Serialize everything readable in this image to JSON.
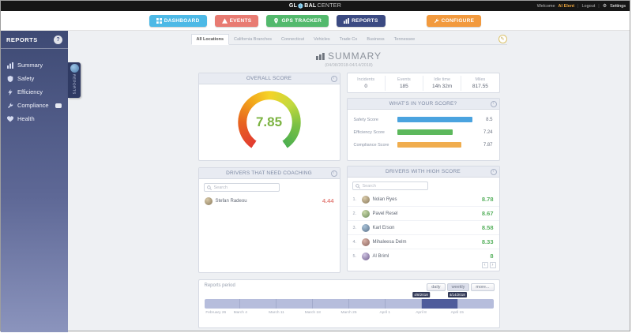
{
  "topbar": {
    "logo": {
      "p1": "GL",
      "p2": "BAL",
      "p3": "CENTER"
    },
    "welcome": "Welcome",
    "user": "Al Elent",
    "logout": "Logout",
    "settings": "Settings"
  },
  "icons": {
    "info": "i",
    "gear": "⚙",
    "prev": "‹",
    "next": "›",
    "edit": "✎"
  },
  "nav": {
    "items": [
      {
        "label": "DASHBOARD",
        "color": "#4db9e6"
      },
      {
        "label": "EVENTS",
        "color": "#e87b72"
      },
      {
        "label": "GPS TRACKER",
        "color": "#53b96d"
      },
      {
        "label": "REPORTS",
        "color": "#3b4a82"
      },
      {
        "label": "CONFIGURE",
        "color": "#f29a3e"
      }
    ]
  },
  "sidebar": {
    "title": "REPORTS",
    "items": [
      {
        "label": "Summary"
      },
      {
        "label": "Safety"
      },
      {
        "label": "Efficiency"
      },
      {
        "label": "Compliance"
      },
      {
        "label": "Health"
      }
    ],
    "tab_label": "REPORTS"
  },
  "tabs": {
    "items": [
      "All Locations",
      "California Branches",
      "Connecticut",
      "Vehicles",
      "Trade Co",
      "Business",
      "Tennessee"
    ]
  },
  "page": {
    "title": "SUMMARY",
    "date_range": "(04/08/2018-04/14/2018)"
  },
  "overall": {
    "title": "OVERALL SCORE",
    "value": "7.85",
    "value_color": "#7cb342"
  },
  "stats": {
    "columns": [
      {
        "label": "Incidents",
        "value": "0"
      },
      {
        "label": "Events",
        "value": "185"
      },
      {
        "label": "Idle time",
        "value": "14h 32m"
      },
      {
        "label": "Miles",
        "value": "817.55"
      }
    ]
  },
  "breakdown": {
    "title": "WHAT'S IN YOUR SCORE?",
    "rows": [
      {
        "label": "Safety Score",
        "value": "8.5",
        "color": "#4aa3df",
        "pct": 93
      },
      {
        "label": "Efficiency Score",
        "value": "7.24",
        "color": "#5cb85c",
        "pct": 68
      },
      {
        "label": "Compliance Score",
        "value": "7.87",
        "color": "#f0ad4e",
        "pct": 79
      }
    ]
  },
  "coaching": {
    "title": "DRIVERS THAT NEED COACHING",
    "search_placeholder": "Search",
    "score_color": "#e4827d",
    "drivers": [
      {
        "name": "Stefan Radeou",
        "score": "4.44"
      }
    ]
  },
  "highscore": {
    "title": "DRIVERS WITH HIGH SCORE",
    "search_placeholder": "Search",
    "score_color": "#58b15f",
    "drivers": [
      {
        "rank": "1.",
        "name": "Nolan Ryes",
        "score": "8.78"
      },
      {
        "rank": "2.",
        "name": "Pavel Resel",
        "score": "8.67"
      },
      {
        "rank": "3.",
        "name": "Karl Erson",
        "score": "8.58"
      },
      {
        "rank": "4.",
        "name": "Mihaleesa Delm",
        "score": "8.33"
      },
      {
        "rank": "5.",
        "name": "Al Briml",
        "score": "8"
      }
    ]
  },
  "period": {
    "title": "Reports period",
    "buttons": [
      {
        "label": "daily",
        "active": false
      },
      {
        "label": "weekly",
        "active": true
      },
      {
        "label": "more...",
        "active": false
      }
    ],
    "tooltips": [
      "4/8/2018",
      "4/14/2018"
    ],
    "axis_labels": [
      "February 26",
      "March 4",
      "March 11",
      "March 18",
      "March 25",
      "April 1",
      "April 8",
      "April 15"
    ],
    "segment_count": 8,
    "selected_segment": 6,
    "bar_color": "#b6bddc",
    "selected_color": "#4e5b9b"
  }
}
